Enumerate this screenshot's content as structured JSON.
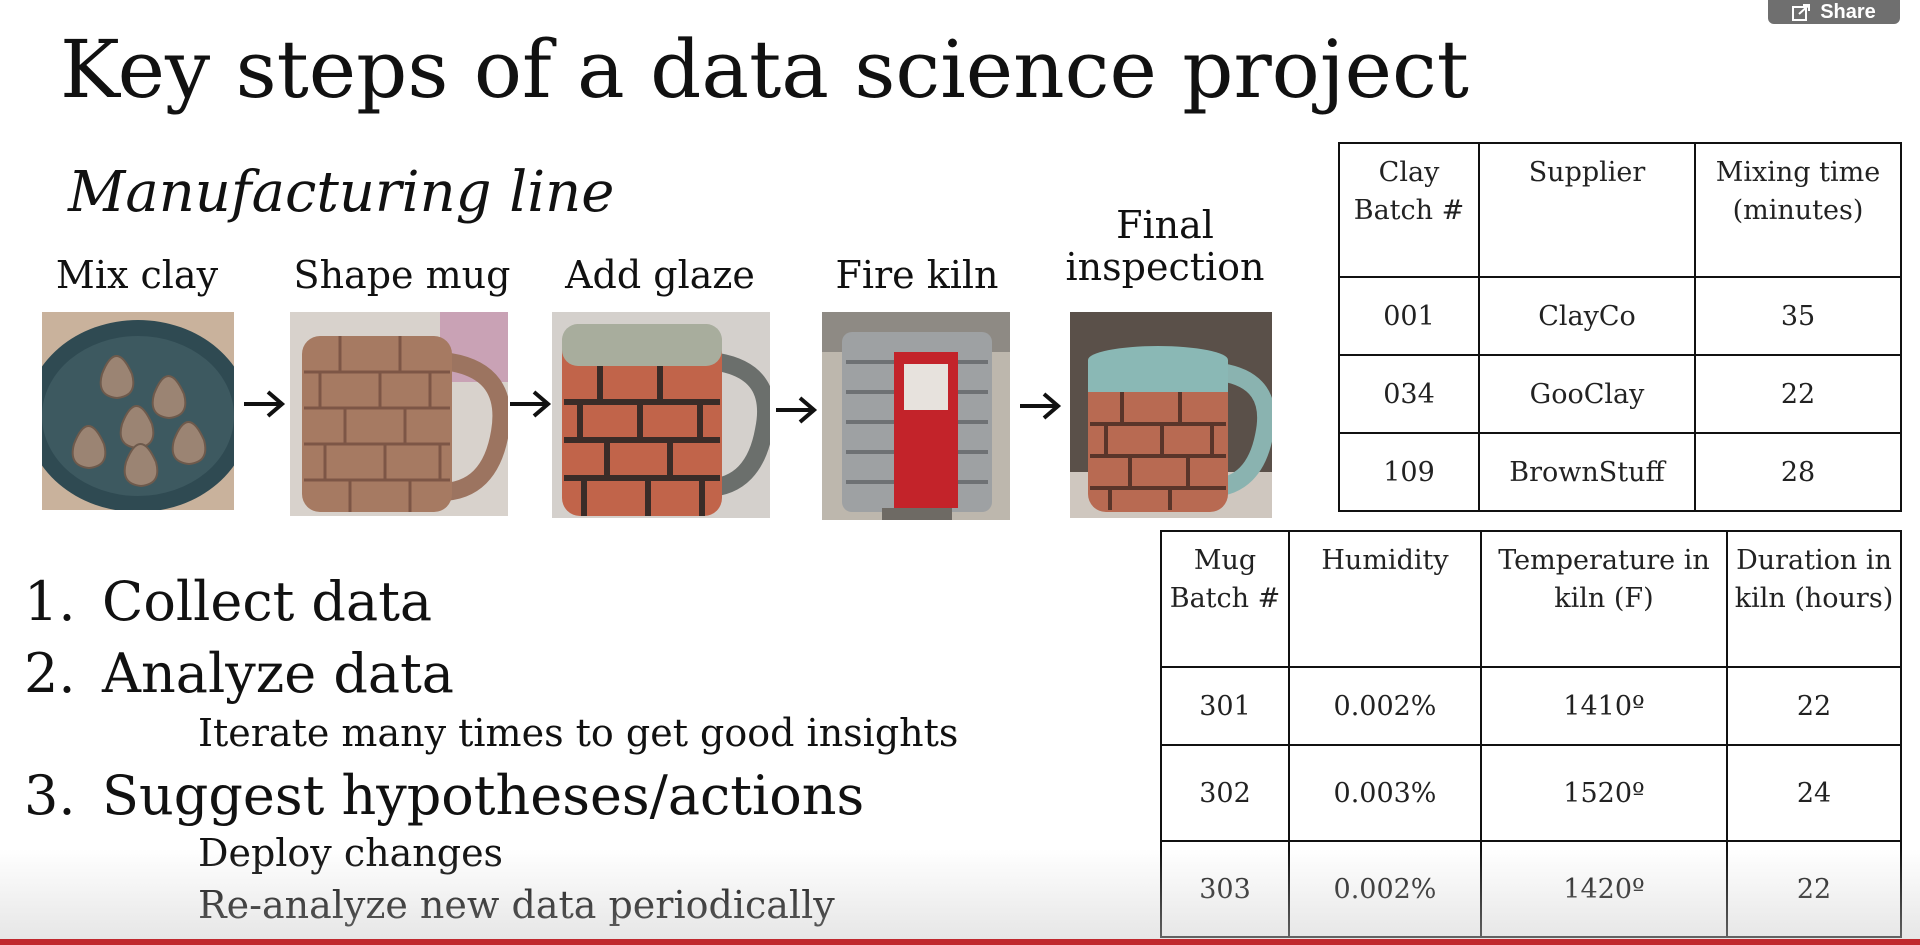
{
  "share": {
    "label": "Share",
    "icon": "share-icon"
  },
  "slide": {
    "title": "Key steps of a data science project",
    "subtitle": "Manufacturing line",
    "steps": [
      {
        "label": "Mix clay"
      },
      {
        "label": "Shape mug"
      },
      {
        "label": "Add glaze"
      },
      {
        "label": "Fire kiln"
      },
      {
        "label": "Final inspection"
      }
    ],
    "list": [
      {
        "num": "1.",
        "text": "Collect data",
        "subs": []
      },
      {
        "num": "2.",
        "text": "Analyze data",
        "subs": [
          "Iterate many times to get good insights"
        ]
      },
      {
        "num": "3.",
        "text": "Suggest hypotheses/actions",
        "subs": [
          "Deploy changes",
          "Re-analyze new data periodically"
        ]
      }
    ],
    "clay_table": {
      "headers": [
        "Clay Batch #",
        "Supplier",
        "Mixing time (minutes)"
      ],
      "rows": [
        [
          "001",
          "ClayCo",
          "35"
        ],
        [
          "034",
          "GooClay",
          "22"
        ],
        [
          "109",
          "BrownStuff",
          "28"
        ]
      ]
    },
    "mug_table": {
      "headers": [
        "Mug Batch #",
        "Humidity",
        "Temperature in kiln (F)",
        "Duration in kiln (hours)"
      ],
      "rows": [
        [
          "301",
          "0.002%",
          "1410º",
          "22"
        ],
        [
          "302",
          "0.003%",
          "1520º",
          "24"
        ],
        [
          "303",
          "0.002%",
          "1420º",
          "22"
        ]
      ]
    }
  },
  "colors": {
    "progress": "#c0282d",
    "share_bg": "#6f6f6f"
  }
}
